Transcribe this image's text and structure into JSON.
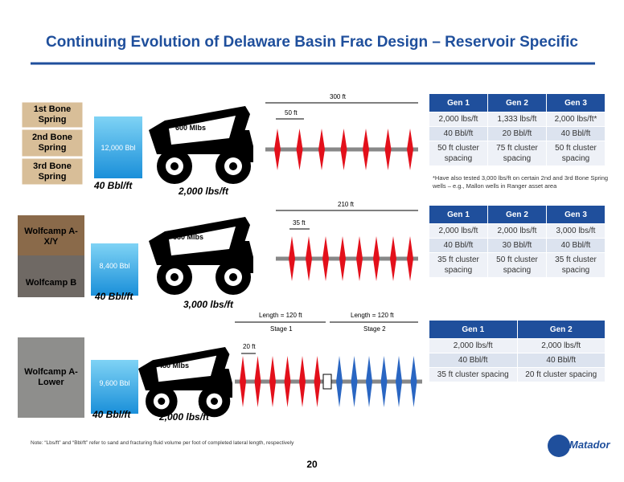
{
  "title": "Continuing Evolution of Delaware Basin Frac Design – Reservoir Specific",
  "sections": [
    {
      "formations": [
        "1st Bone Spring",
        "2nd Bone Spring",
        "3rd Bone Spring"
      ],
      "fluid_volume": "12,000 Bbl",
      "fluid_intensity": "40 Bbl/ft",
      "proppant_load": "600 Mlbs",
      "proppant_intensity": "2,000 lbs/ft",
      "lateral_length": "300 ft",
      "cluster_spacing": "50 ft",
      "table": {
        "header": [
          "Gen 1",
          "Gen 2",
          "Gen 3"
        ],
        "rows": [
          [
            "2,000 lbs/ft",
            "1,333 lbs/ft",
            "2,000 lbs/ft*"
          ],
          [
            "40 Bbl/ft",
            "20 Bbl/ft",
            "40 Bbl/ft"
          ],
          [
            "50 ft cluster spacing",
            "75 ft cluster spacing",
            "50 ft cluster spacing"
          ]
        ]
      },
      "footnote": "*Have also tested 3,000 lbs/ft on certain 2nd and 3rd Bone Spring wells – e.g., Mallon wells in Ranger asset area"
    },
    {
      "formations": [
        "Wolfcamp A-X/Y",
        "Wolfcamp B"
      ],
      "fluid_volume": "8,400 Bbl",
      "fluid_intensity": "40 Bbl/ft",
      "proppant_load": "630 Mlbs",
      "proppant_intensity": "3,000 lbs/ft",
      "lateral_length": "210 ft",
      "cluster_spacing": "35 ft",
      "table": {
        "header": [
          "Gen 1",
          "Gen 2",
          "Gen 3"
        ],
        "rows": [
          [
            "2,000 lbs/ft",
            "2,000 lbs/ft",
            "3,000 lbs/ft"
          ],
          [
            "40 Bbl/ft",
            "30 Bbl/ft",
            "40 Bbl/ft"
          ],
          [
            "35 ft cluster spacing",
            "50 ft cluster spacing",
            "35 ft cluster spacing"
          ]
        ]
      }
    },
    {
      "formations": [
        "Wolfcamp A-Lower"
      ],
      "fluid_volume": "9,600 Bbl",
      "fluid_intensity": "40 Bbl/ft",
      "proppant_load": "480 Mlbs",
      "proppant_intensity": "2,000 lbs/ft",
      "stages": [
        {
          "length": "Length = 120 ft",
          "name": "Stage 1"
        },
        {
          "length": "Length = 120 ft",
          "name": "Stage 2"
        }
      ],
      "cluster_spacing": "20 ft",
      "table": {
        "header": [
          "Gen 1",
          "Gen 2"
        ],
        "rows": [
          [
            "2,000 lbs/ft",
            "2,000 lbs/ft"
          ],
          [
            "40 Bbl/ft",
            "40 Bbl/ft"
          ],
          [
            "35 ft cluster spacing",
            "20 ft cluster spacing"
          ]
        ]
      }
    }
  ],
  "note": "Note: “Lbs/ft” and “Bbl/ft” refer to sand and fracturing fluid volume per foot of completed lateral length, respectively",
  "page_number": "20",
  "logo": "Matador"
}
